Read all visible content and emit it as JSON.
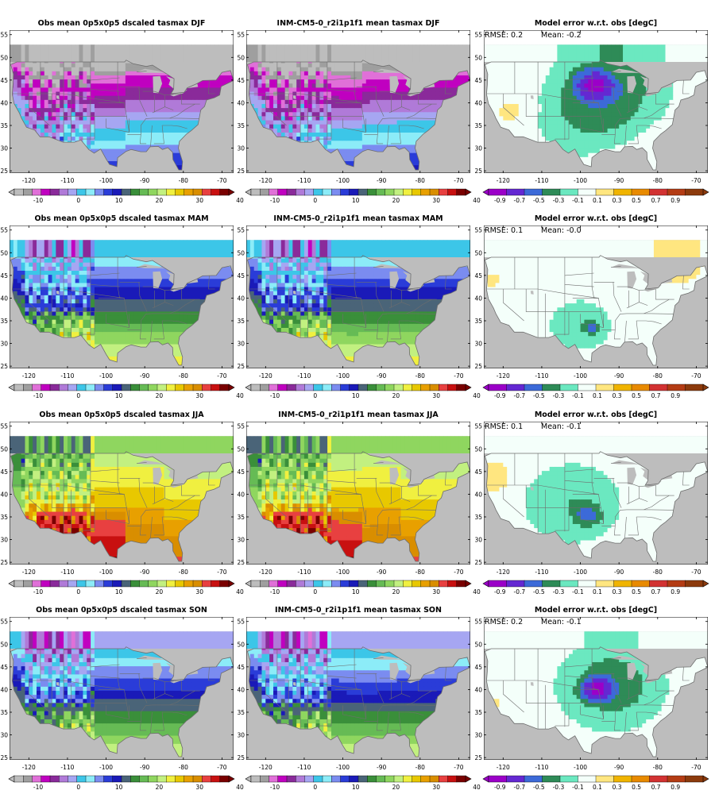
{
  "map_extent": {
    "lon": [
      -125,
      -67
    ],
    "lat": [
      24.5,
      56
    ]
  },
  "map_ticks": {
    "lon": [
      -120,
      -110,
      -100,
      -90,
      -80,
      -70
    ],
    "lat": [
      25,
      30,
      35,
      40,
      45,
      50,
      55
    ],
    "lon_labels": [
      "-120",
      "-110",
      "-100",
      "-90",
      "-80",
      "-70"
    ],
    "lat_labels": [
      "25",
      "30",
      "35",
      "40",
      "45",
      "50",
      "55"
    ]
  },
  "colors": {
    "land_mask": "#bdbdbd",
    "map_border": "#000000",
    "state_lines": "#6e6e6e"
  },
  "temp_colorbar": {
    "colors": [
      "#bdbdbd",
      "#9f9f9f",
      "#e070d8",
      "#c000c0",
      "#8a2a9a",
      "#b07ad8",
      "#a6a6f2",
      "#3cc6e8",
      "#8cecf8",
      "#7b8cf0",
      "#2a3cd8",
      "#1a1ab8",
      "#4a6478",
      "#3a8f3a",
      "#66bb55",
      "#8fd65f",
      "#c2f080",
      "#f0f040",
      "#e8c800",
      "#e8a000",
      "#d98e00",
      "#e84040",
      "#c81010",
      "#7a0000"
    ],
    "labels": [
      "-10",
      "0",
      "10",
      "20",
      "30",
      "40"
    ]
  },
  "error_colorbar": {
    "colors": [
      "#9b00c8",
      "#6428d2",
      "#3c6ad8",
      "#2e8b57",
      "#6be8c0",
      "#f4fffa",
      "#ffe680",
      "#f0b400",
      "#e88a00",
      "#d23232",
      "#b43c14",
      "#8c3a0c"
    ],
    "labels": [
      "-0.9",
      "-0.7",
      "-0.5",
      "-0.3",
      "-0.1",
      "0.1",
      "0.3",
      "0.5",
      "0.7",
      "0.9"
    ]
  },
  "panels": [
    {
      "season": "DJF",
      "obs_title": "Obs mean 0p5x0p5 dscaled tasmax DJF",
      "model_title": "INM-CM5-0_r2i1p1f1 mean tasmax DJF",
      "error_title": "Model error w.r.t. obs [degC]",
      "rmse_text": "RMSE: 0.2",
      "mean_text": "Mean: -0.2"
    },
    {
      "season": "MAM",
      "obs_title": "Obs mean 0p5x0p5 dscaled tasmax MAM",
      "model_title": "INM-CM5-0_r2i1p1f1 mean tasmax MAM",
      "error_title": "Model error w.r.t. obs [degC]",
      "rmse_text": "RMSE: 0.1",
      "mean_text": "Mean: -0.0"
    },
    {
      "season": "JJA",
      "obs_title": "Obs mean 0p5x0p5 dscaled tasmax JJA",
      "model_title": "INM-CM5-0_r2i1p1f1 mean tasmax JJA",
      "error_title": "Model error w.r.t. obs [degC]",
      "rmse_text": "RMSE: 0.1",
      "mean_text": "Mean: -0.1"
    },
    {
      "season": "SON",
      "obs_title": "Obs mean 0p5x0p5 dscaled tasmax SON",
      "model_title": "INM-CM5-0_r2i1p1f1 mean tasmax SON",
      "error_title": "Model error w.r.t. obs [degC]",
      "rmse_text": "RMSE: 0.2",
      "mean_text": "Mean: -0.1"
    }
  ],
  "chart_data": {
    "type": "heatmap",
    "description_of_fields": "Seasonal mean daily maximum near-surface air temperature (tasmax, degC) over the contiguous United States: observations, INM-CM5-0 model, and model minus observations error.",
    "xlabel": "",
    "ylabel": "",
    "xlim": [
      -125,
      -67
    ],
    "ylim": [
      24.5,
      56
    ],
    "temperature_levels": [
      -10,
      0,
      10,
      20,
      30,
      40
    ],
    "error_levels": [
      -0.9,
      -0.7,
      -0.5,
      -0.3,
      -0.1,
      0.1,
      0.3,
      0.5,
      0.7,
      0.9
    ],
    "seasons": [
      "DJF",
      "MAM",
      "JJA",
      "SON"
    ],
    "rmse": [
      0.2,
      0.1,
      0.1,
      0.2
    ],
    "mean_error": [
      -0.2,
      -0.0,
      -0.1,
      -0.1
    ]
  }
}
